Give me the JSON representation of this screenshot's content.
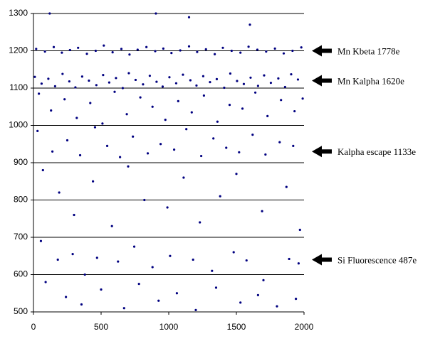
{
  "chart_data": {
    "type": "scatter",
    "xlim": [
      0,
      2000
    ],
    "ylim": [
      500,
      1300
    ],
    "xticks": [
      0,
      500,
      1000,
      1500,
      2000
    ],
    "yticks": [
      500,
      600,
      700,
      800,
      900,
      1000,
      1100,
      1200,
      1300
    ],
    "grid": true,
    "series": [
      {
        "color": "#000080",
        "x": [
          20,
          85,
          150,
          210,
          270,
          330,
          395,
          460,
          520,
          585,
          650,
          710,
          770,
          835,
          900,
          960,
          1020,
          1085,
          1150,
          1210,
          1275,
          1340,
          1400,
          1465,
          1530,
          1590,
          1655,
          1720,
          1785,
          1850,
          1915,
          1980,
          10,
          60,
          110,
          160,
          215,
          265,
          310,
          360,
          410,
          465,
          515,
          560,
          610,
          660,
          705,
          755,
          810,
          860,
          910,
          955,
          1005,
          1055,
          1105,
          1160,
          1205,
          1255,
          1305,
          1355,
          1410,
          1455,
          1505,
          1555,
          1605,
          1660,
          1705,
          1755,
          1810,
          1860,
          1905,
          1955,
          40,
          130,
          230,
          320,
          420,
          510,
          600,
          690,
          790,
          880,
          975,
          1070,
          1170,
          1260,
          1360,
          1450,
          1545,
          1640,
          1730,
          1830,
          1930,
          1990,
          30,
          140,
          250,
          345,
          455,
          545,
          640,
          735,
          845,
          940,
          1040,
          1130,
          1240,
          1330,
          1425,
          1520,
          1620,
          1715,
          1820,
          1920,
          70,
          190,
          300,
          440,
          580,
          700,
          820,
          990,
          1110,
          1230,
          1380,
          1500,
          1690,
          1870,
          1970,
          55,
          180,
          290,
          380,
          470,
          625,
          745,
          880,
          1010,
          1180,
          1320,
          1480,
          1575,
          1700,
          1890,
          1960,
          90,
          240,
          355,
          500,
          670,
          780,
          925,
          1060,
          1200,
          1350,
          1530,
          1660,
          1800,
          1940,
          120,
          905,
          1150,
          1600
        ],
        "values": [
          1205,
          1198,
          1210,
          1195,
          1202,
          1208,
          1192,
          1200,
          1214,
          1196,
          1205,
          1190,
          1203,
          1210,
          1199,
          1206,
          1194,
          1201,
          1212,
          1197,
          1204,
          1191,
          1208,
          1200,
          1195,
          1211,
          1203,
          1198,
          1206,
          1193,
          1200,
          1209,
          1130,
          1112,
          1125,
          1105,
          1138,
          1118,
          1102,
          1131,
          1120,
          1108,
          1135,
          1115,
          1127,
          1100,
          1140,
          1122,
          1110,
          1133,
          1117,
          1104,
          1129,
          1113,
          1136,
          1121,
          1107,
          1132,
          1116,
          1124,
          1101,
          1139,
          1119,
          1111,
          1128,
          1106,
          1134,
          1114,
          1126,
          1103,
          1137,
          1123,
          1085,
          1040,
          1070,
          1020,
          1060,
          1005,
          1090,
          1030,
          1075,
          1050,
          1015,
          1065,
          1035,
          1080,
          1010,
          1055,
          1045,
          1088,
          1025,
          1068,
          1038,
          1072,
          985,
          930,
          960,
          920,
          995,
          945,
          915,
          970,
          925,
          950,
          935,
          990,
          918,
          965,
          940,
          928,
          975,
          922,
          955,
          945,
          880,
          820,
          760,
          850,
          730,
          890,
          800,
          780,
          860,
          740,
          810,
          870,
          770,
          835,
          720,
          690,
          640,
          655,
          600,
          645,
          635,
          675,
          620,
          650,
          640,
          610,
          660,
          638,
          585,
          642,
          630,
          580,
          540,
          520,
          560,
          510,
          575,
          530,
          550,
          505,
          565,
          525,
          545,
          515,
          535,
          1300,
          1300,
          1290,
          1270
        ]
      }
    ],
    "annotations": [
      {
        "text": "Mn Kbeta  1778e",
        "y": 1200
      },
      {
        "text": "Mn Kalpha 1620e",
        "y": 1120
      },
      {
        "text": "Kalpha escape 1133e",
        "y": 930
      },
      {
        "text": "Si Fluorescence 487e",
        "y": 640
      }
    ]
  }
}
